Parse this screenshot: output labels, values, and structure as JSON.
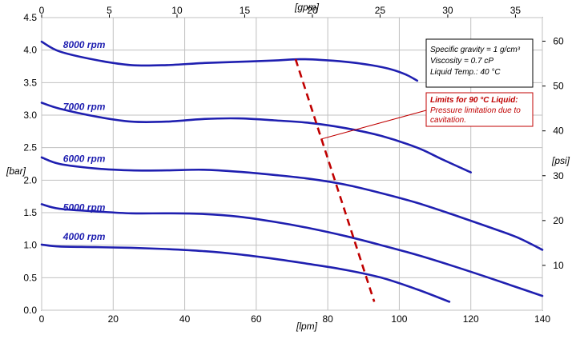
{
  "chart_data": {
    "type": "line",
    "x_label": "[lpm]",
    "x_ticks": [
      0,
      20,
      40,
      60,
      80,
      100,
      120,
      140
    ],
    "xlim": [
      0,
      140
    ],
    "x2_label": "[gpm]",
    "x2_ticks": [
      0,
      5,
      10,
      15,
      20,
      25,
      30,
      35
    ],
    "x2_factor": 3.785,
    "y_label": "[bar]",
    "y_ticks": [
      0.0,
      0.5,
      1.0,
      1.5,
      2.0,
      2.5,
      3.0,
      3.5,
      4.0,
      4.5
    ],
    "y_tick_labels": [
      "0.0",
      "0.5",
      "1.0",
      "1.5",
      "2.0",
      "2.5",
      "3.0",
      "3.5",
      "4.0",
      "4.5"
    ],
    "ylim": [
      0,
      4.5
    ],
    "y2_label": "[psi]",
    "y2_ticks": [
      10,
      20,
      30,
      40,
      50,
      60
    ],
    "y2_factor": 14.5038,
    "grid": true,
    "series_color": "#1f1fb0",
    "series": [
      {
        "name": "8000 rpm",
        "label_at": [
          6,
          4.03
        ],
        "points": [
          [
            0,
            4.13
          ],
          [
            5,
            3.98
          ],
          [
            15,
            3.85
          ],
          [
            25,
            3.77
          ],
          [
            35,
            3.77
          ],
          [
            45,
            3.8
          ],
          [
            55,
            3.82
          ],
          [
            65,
            3.84
          ],
          [
            72,
            3.86
          ],
          [
            78,
            3.85
          ],
          [
            85,
            3.82
          ],
          [
            92,
            3.77
          ],
          [
            98,
            3.7
          ],
          [
            102,
            3.62
          ],
          [
            105,
            3.53
          ]
        ]
      },
      {
        "name": "7000 rpm",
        "label_at": [
          6,
          3.08
        ],
        "points": [
          [
            0,
            3.19
          ],
          [
            5,
            3.1
          ],
          [
            15,
            2.98
          ],
          [
            25,
            2.9
          ],
          [
            35,
            2.9
          ],
          [
            45,
            2.94
          ],
          [
            55,
            2.95
          ],
          [
            65,
            2.92
          ],
          [
            75,
            2.88
          ],
          [
            85,
            2.8
          ],
          [
            95,
            2.68
          ],
          [
            105,
            2.5
          ],
          [
            112,
            2.32
          ],
          [
            120,
            2.12
          ]
        ]
      },
      {
        "name": "6000 rpm",
        "label_at": [
          6,
          2.28
        ],
        "points": [
          [
            0,
            2.35
          ],
          [
            5,
            2.25
          ],
          [
            15,
            2.18
          ],
          [
            25,
            2.15
          ],
          [
            35,
            2.15
          ],
          [
            45,
            2.16
          ],
          [
            55,
            2.13
          ],
          [
            65,
            2.08
          ],
          [
            75,
            2.02
          ],
          [
            85,
            1.93
          ],
          [
            95,
            1.8
          ],
          [
            105,
            1.65
          ],
          [
            115,
            1.47
          ],
          [
            125,
            1.28
          ],
          [
            133,
            1.12
          ],
          [
            140,
            0.93
          ]
        ]
      },
      {
        "name": "5000 rpm",
        "label_at": [
          6,
          1.53
        ],
        "points": [
          [
            0,
            1.63
          ],
          [
            5,
            1.56
          ],
          [
            15,
            1.52
          ],
          [
            25,
            1.49
          ],
          [
            35,
            1.49
          ],
          [
            45,
            1.48
          ],
          [
            55,
            1.44
          ],
          [
            65,
            1.36
          ],
          [
            75,
            1.26
          ],
          [
            85,
            1.14
          ],
          [
            95,
            1.0
          ],
          [
            105,
            0.85
          ],
          [
            115,
            0.68
          ],
          [
            125,
            0.5
          ],
          [
            133,
            0.35
          ],
          [
            140,
            0.22
          ]
        ]
      },
      {
        "name": "4000 rpm",
        "label_at": [
          6,
          1.08
        ],
        "points": [
          [
            0,
            1.01
          ],
          [
            5,
            0.98
          ],
          [
            15,
            0.97
          ],
          [
            25,
            0.96
          ],
          [
            35,
            0.94
          ],
          [
            45,
            0.91
          ],
          [
            55,
            0.86
          ],
          [
            65,
            0.79
          ],
          [
            75,
            0.71
          ],
          [
            85,
            0.62
          ],
          [
            95,
            0.5
          ],
          [
            105,
            0.32
          ],
          [
            114,
            0.13
          ]
        ]
      }
    ],
    "limit_line": {
      "color": "#c00000",
      "points": [
        [
          71,
          3.86
        ],
        [
          93,
          0.13
        ]
      ]
    },
    "info_box": {
      "lines": [
        "Specific gravity = 1 g/cm³",
        "Viscosity = 0.7 cP",
        "Liquid Temp.: 40 °C"
      ]
    },
    "annotation": {
      "title": "Limits for 90 °C Liquid:",
      "text": [
        "Pressure limitation due to",
        "cavitation."
      ],
      "arrow_to": [
        78,
        2.63
      ]
    }
  }
}
